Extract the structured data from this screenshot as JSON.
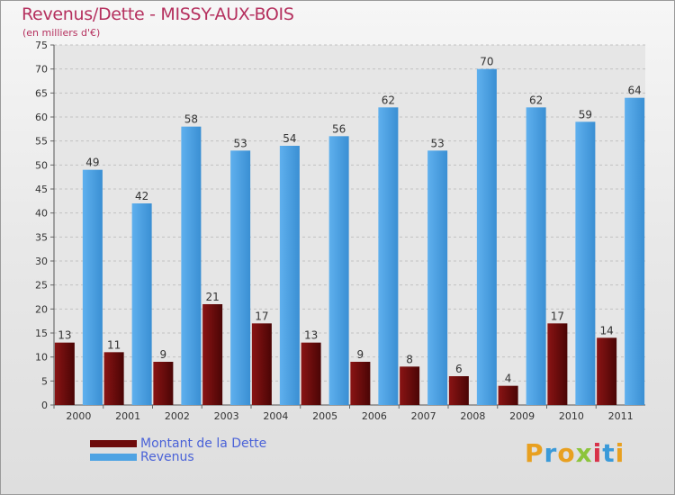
{
  "header": {
    "title": "Revenus/Dette - MISSY-AUX-BOIS",
    "subtitle": "(en milliers d'€)"
  },
  "colors": {
    "title": "#b5305e",
    "legend_text": "#4a62d8",
    "dette": "#6e0b0b",
    "revenus": "#4ea3e3"
  },
  "logo": {
    "text": "Proxiti"
  },
  "legend": [
    {
      "label": "Montant de la Dette",
      "color": "#6e0b0b"
    },
    {
      "label": "Revenus",
      "color": "#4ea3e3"
    }
  ],
  "chart_data": {
    "type": "bar",
    "title": "Revenus/Dette - MISSY-AUX-BOIS",
    "subtitle": "(en milliers d'€)",
    "categories": [
      "2000",
      "2001",
      "2002",
      "2003",
      "2004",
      "2005",
      "2006",
      "2007",
      "2008",
      "2009",
      "2010",
      "2011"
    ],
    "series": [
      {
        "name": "Montant de la Dette",
        "color": "#6e0b0b",
        "values": [
          13,
          11,
          9,
          21,
          17,
          13,
          9,
          8,
          6,
          4,
          17,
          14
        ]
      },
      {
        "name": "Revenus",
        "color": "#4ea3e3",
        "values": [
          49,
          42,
          58,
          53,
          54,
          56,
          62,
          53,
          70,
          62,
          59,
          64
        ]
      }
    ],
    "ylim": [
      0,
      75
    ],
    "yticks": [
      0,
      5,
      10,
      15,
      20,
      25,
      30,
      35,
      40,
      45,
      50,
      55,
      60,
      65,
      70,
      75
    ],
    "grid": true,
    "legend_position": "bottom-left",
    "data_labels": true
  }
}
